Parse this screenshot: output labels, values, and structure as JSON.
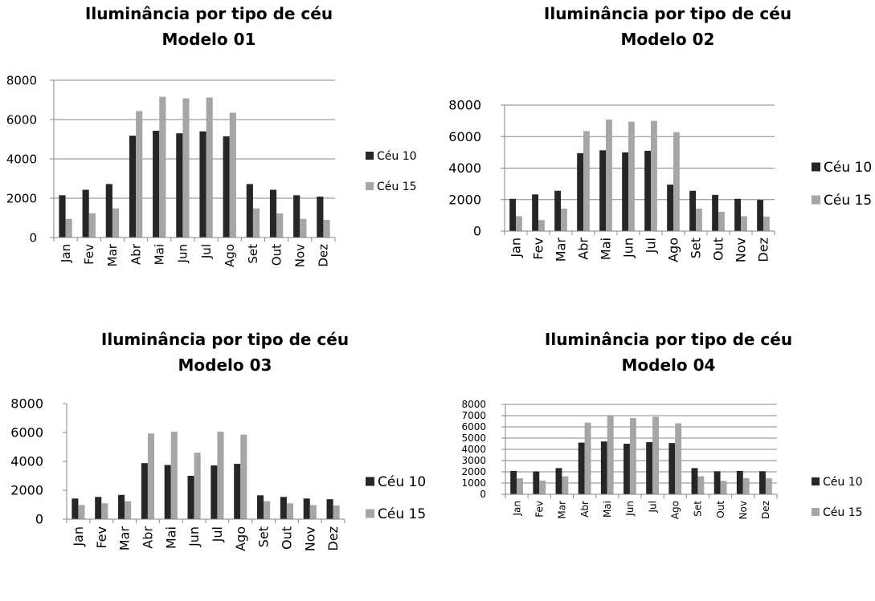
{
  "chart_data": [
    {
      "type": "bar",
      "title": "Iluminância por tipo de céu",
      "subtitle": "Modelo 01",
      "categories": [
        "Jan",
        "Fev",
        "Mar",
        "Abr",
        "Mai",
        "Jun",
        "Jul",
        "Ago",
        "Set",
        "Out",
        "Nov",
        "Dez"
      ],
      "series": [
        {
          "name": "Céu 10",
          "color": "#262626",
          "values": [
            2150,
            2430,
            2720,
            5180,
            5430,
            5300,
            5400,
            5150,
            2720,
            2430,
            2150,
            2080
          ]
        },
        {
          "name": "Céu 15",
          "color": "#a6a6a6",
          "values": [
            950,
            1230,
            1480,
            6430,
            7160,
            7080,
            7120,
            6350,
            1480,
            1230,
            950,
            900
          ]
        }
      ],
      "ylim": [
        0,
        8000
      ],
      "yticks": [
        0,
        2000,
        4000,
        6000,
        8000
      ],
      "ytick_labels": [
        "0",
        "2000",
        "4000",
        "6000",
        "8000"
      ],
      "grid": true,
      "legend": "right"
    },
    {
      "type": "bar",
      "title": "Iluminância por tipo de céu",
      "subtitle": "Modelo 02",
      "categories": [
        "Jan",
        "Fev",
        "Mar",
        "Abr",
        "Mai",
        "Jun",
        "Jul",
        "Ago",
        "Set",
        "Out",
        "Nov",
        "Dez"
      ],
      "series": [
        {
          "name": "Céu 10",
          "color": "#262626",
          "values": [
            2050,
            2330,
            2560,
            4950,
            5130,
            5000,
            5100,
            2950,
            2560,
            2300,
            2050,
            1980
          ]
        },
        {
          "name": "Céu 15",
          "color": "#a6a6a6",
          "values": [
            950,
            700,
            1430,
            6350,
            7080,
            6950,
            7000,
            6280,
            1430,
            1230,
            950,
            920
          ]
        }
      ],
      "ylim": [
        0,
        8000
      ],
      "yticks": [
        0,
        2000,
        4000,
        6000,
        8000
      ],
      "ytick_labels": [
        "0",
        "2000",
        "4000",
        "6000",
        "8000"
      ],
      "grid": true,
      "legend": "right"
    },
    {
      "type": "bar",
      "title": "Iluminância por tipo de céu",
      "subtitle": "Modelo 03",
      "categories": [
        "Jan",
        "Fev",
        "Mar",
        "Abr",
        "Mai",
        "Jun",
        "Jul",
        "Ago",
        "Set",
        "Out",
        "Nov",
        "Dez"
      ],
      "series": [
        {
          "name": "Céu 10",
          "color": "#262626",
          "values": [
            1430,
            1540,
            1680,
            3880,
            3750,
            3000,
            3720,
            3830,
            1650,
            1540,
            1430,
            1380
          ]
        },
        {
          "name": "Céu 15",
          "color": "#a6a6a6",
          "values": [
            980,
            1100,
            1240,
            5930,
            6060,
            4600,
            6060,
            5850,
            1240,
            1100,
            980,
            960
          ]
        }
      ],
      "ylim": [
        0,
        8000
      ],
      "yticks": [
        0,
        2000,
        4000,
        6000,
        8000
      ],
      "ytick_labels": [
        "0",
        "2000",
        "4000",
        "6000",
        "8000"
      ],
      "grid": false,
      "legend": "right"
    },
    {
      "type": "bar",
      "title": "Iluminância por tipo de céu",
      "subtitle": "Modelo 04",
      "categories": [
        "Jan",
        "Fev",
        "Mar",
        "Abr",
        "Mai",
        "Jun",
        "Jul",
        "Ago",
        "Set",
        "Out",
        "Nov",
        "Dez"
      ],
      "series": [
        {
          "name": "Céu 10",
          "color": "#262626",
          "values": [
            2080,
            2040,
            2330,
            4600,
            4700,
            4500,
            4640,
            4560,
            2330,
            2050,
            2080,
            2050
          ]
        },
        {
          "name": "Céu 15",
          "color": "#a6a6a6",
          "values": [
            1420,
            1220,
            1600,
            6380,
            6950,
            6780,
            6900,
            6320,
            1600,
            1200,
            1440,
            1420
          ]
        }
      ],
      "ylim": [
        0,
        8000
      ],
      "yticks": [
        0,
        1000,
        2000,
        3000,
        4000,
        5000,
        6000,
        7000,
        8000
      ],
      "ytick_labels": [
        "0",
        "1000",
        "2000",
        "3000",
        "4000",
        "5000",
        "6000",
        "7000",
        "8000"
      ],
      "grid": true,
      "legend": "right"
    }
  ]
}
